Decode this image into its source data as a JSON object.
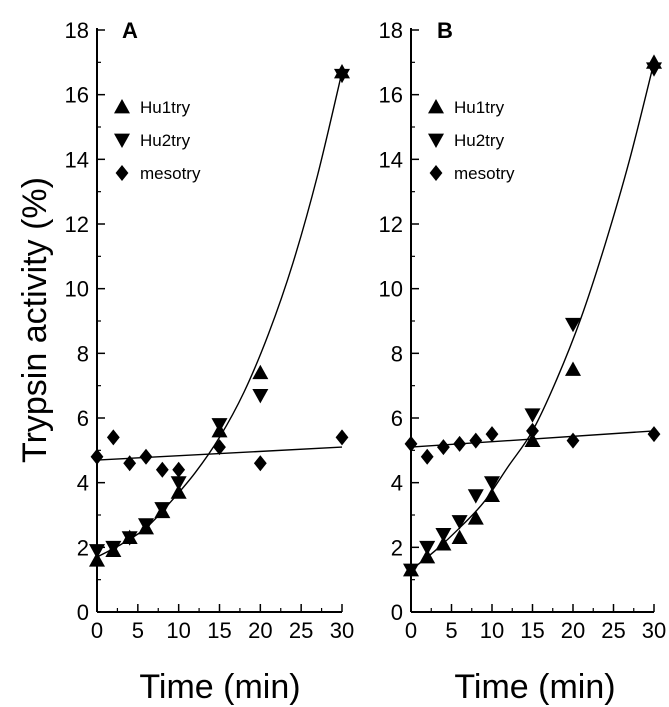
{
  "chart_data": [
    {
      "type": "scatter",
      "panel_label": "A",
      "xlabel": "Time (min)",
      "ylabel": "Trypsin activity (%)",
      "xlim": [
        0,
        30
      ],
      "ylim": [
        0,
        18
      ],
      "x_ticks": [
        0,
        5,
        10,
        15,
        20,
        25,
        30
      ],
      "y_ticks": [
        0,
        2,
        4,
        6,
        8,
        10,
        12,
        14,
        16,
        18
      ],
      "grid": false,
      "legend_position": "top-left",
      "series": [
        {
          "name": "Hu1try",
          "marker": "triangle-up",
          "x": [
            0,
            2,
            4,
            6,
            8,
            10,
            15,
            20,
            30
          ],
          "y": [
            1.6,
            1.9,
            2.3,
            2.6,
            3.1,
            3.7,
            5.6,
            7.4,
            16.7
          ]
        },
        {
          "name": "Hu2try",
          "marker": "triangle-down",
          "x": [
            0,
            2,
            4,
            6,
            8,
            10,
            15,
            20,
            30
          ],
          "y": [
            1.9,
            2.0,
            2.3,
            2.7,
            3.2,
            4.0,
            5.8,
            6.7,
            16.6
          ]
        },
        {
          "name": "mesotry",
          "marker": "diamond",
          "x": [
            0,
            2,
            4,
            6,
            8,
            10,
            15,
            20,
            30
          ],
          "y": [
            4.8,
            5.4,
            4.6,
            4.8,
            4.4,
            4.4,
            5.1,
            4.6,
            5.4
          ]
        }
      ],
      "fit_lines": [
        {
          "kind": "exponential",
          "x": [
            0,
            3,
            6,
            9,
            12,
            15,
            18,
            21,
            24,
            27,
            30
          ],
          "y": [
            1.7,
            2.1,
            2.6,
            3.4,
            4.3,
            5.4,
            6.8,
            8.6,
            10.8,
            13.5,
            16.7
          ]
        },
        {
          "kind": "linear",
          "x": [
            0,
            30
          ],
          "y": [
            4.7,
            5.1
          ]
        }
      ]
    },
    {
      "type": "scatter",
      "panel_label": "B",
      "xlabel": "Time (min)",
      "ylabel": "",
      "xlim": [
        0,
        30
      ],
      "ylim": [
        0,
        18
      ],
      "x_ticks": [
        0,
        5,
        10,
        15,
        20,
        25,
        30
      ],
      "y_ticks": [
        0,
        2,
        4,
        6,
        8,
        10,
        12,
        14,
        16,
        18
      ],
      "grid": false,
      "legend_position": "top-left",
      "series": [
        {
          "name": "Hu1try",
          "marker": "triangle-up",
          "x": [
            0,
            2,
            4,
            6,
            8,
            10,
            15,
            20,
            30
          ],
          "y": [
            1.3,
            1.7,
            2.1,
            2.3,
            2.9,
            3.6,
            5.3,
            7.5,
            17.0
          ]
        },
        {
          "name": "Hu2try",
          "marker": "triangle-down",
          "x": [
            0,
            2,
            4,
            6,
            8,
            10,
            15,
            20,
            30
          ],
          "y": [
            1.3,
            2.0,
            2.4,
            2.8,
            3.6,
            4.0,
            6.1,
            8.9,
            16.8
          ]
        },
        {
          "name": "mesotry",
          "marker": "diamond",
          "x": [
            0,
            2,
            4,
            6,
            8,
            10,
            15,
            20,
            30
          ],
          "y": [
            5.2,
            4.8,
            5.1,
            5.2,
            5.3,
            5.5,
            5.6,
            5.3,
            5.5
          ]
        }
      ],
      "fit_lines": [
        {
          "kind": "exponential",
          "x": [
            0,
            3,
            6,
            9,
            12,
            15,
            18,
            21,
            24,
            27,
            30
          ],
          "y": [
            1.3,
            1.9,
            2.6,
            3.4,
            4.5,
            5.6,
            7.2,
            9.1,
            11.4,
            14.0,
            17.0
          ]
        },
        {
          "kind": "linear",
          "x": [
            0,
            30
          ],
          "y": [
            5.1,
            5.6
          ]
        }
      ]
    }
  ]
}
